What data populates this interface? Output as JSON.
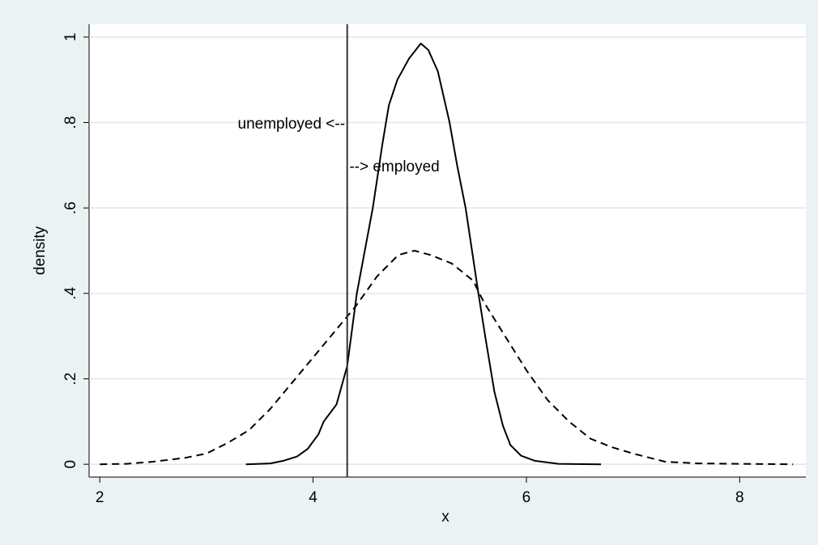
{
  "chart_data": {
    "type": "line",
    "xlabel": "x",
    "ylabel": "density",
    "xlim": [
      1.9,
      8.62
    ],
    "ylim": [
      -0.03,
      1.03
    ],
    "xticks": [
      2,
      4,
      6,
      8
    ],
    "yticks": [
      0,
      {
        "value": 0.2,
        "label": ".2"
      },
      {
        "value": 0.4,
        "label": ".4"
      },
      {
        "value": 0.6,
        "label": ".6"
      },
      {
        "value": 0.8,
        "label": ".8"
      },
      1
    ],
    "grid": true,
    "xline": 4.32,
    "annotations": [
      {
        "text": "unemployed <--",
        "x": 4.3,
        "y": 0.795,
        "anchor": "end"
      },
      {
        "text": "--> employed",
        "x": 4.34,
        "y": 0.695,
        "anchor": "start"
      }
    ],
    "series": [
      {
        "color": "#000000",
        "dash": false,
        "x": [
          3.37,
          3.6,
          3.72,
          3.85,
          3.95,
          4.05,
          4.1,
          4.22,
          4.32,
          4.41,
          4.5,
          4.56,
          4.65,
          4.71,
          4.79,
          4.9,
          5.01,
          5.08,
          5.17,
          5.28,
          5.35,
          5.43,
          5.55,
          5.62,
          5.7,
          5.78,
          5.85,
          5.95,
          6.08,
          6.3,
          6.7
        ],
        "values": [
          0,
          0.002,
          0.008,
          0.018,
          0.036,
          0.07,
          0.1,
          0.14,
          0.23,
          0.4,
          0.52,
          0.6,
          0.75,
          0.84,
          0.9,
          0.95,
          0.985,
          0.97,
          0.92,
          0.8,
          0.7,
          0.6,
          0.4,
          0.29,
          0.17,
          0.09,
          0.045,
          0.02,
          0.008,
          0.001,
          0
        ]
      },
      {
        "color": "#000000",
        "dash": true,
        "x": [
          2,
          2.25,
          2.5,
          2.8,
          3.0,
          3.2,
          3.4,
          3.6,
          3.8,
          4.0,
          4.2,
          4.4,
          4.6,
          4.8,
          4.95,
          5.1,
          5.3,
          5.5,
          5.6,
          5.8,
          6.0,
          6.2,
          6.4,
          6.6,
          6.8,
          7.0,
          7.3,
          7.6,
          8.0,
          8.5
        ],
        "values": [
          0,
          0.001,
          0.006,
          0.015,
          0.025,
          0.05,
          0.08,
          0.13,
          0.19,
          0.25,
          0.31,
          0.37,
          0.44,
          0.49,
          0.5,
          0.49,
          0.47,
          0.43,
          0.38,
          0.3,
          0.22,
          0.15,
          0.1,
          0.06,
          0.04,
          0.025,
          0.006,
          0.002,
          0.001,
          0
        ]
      }
    ]
  }
}
